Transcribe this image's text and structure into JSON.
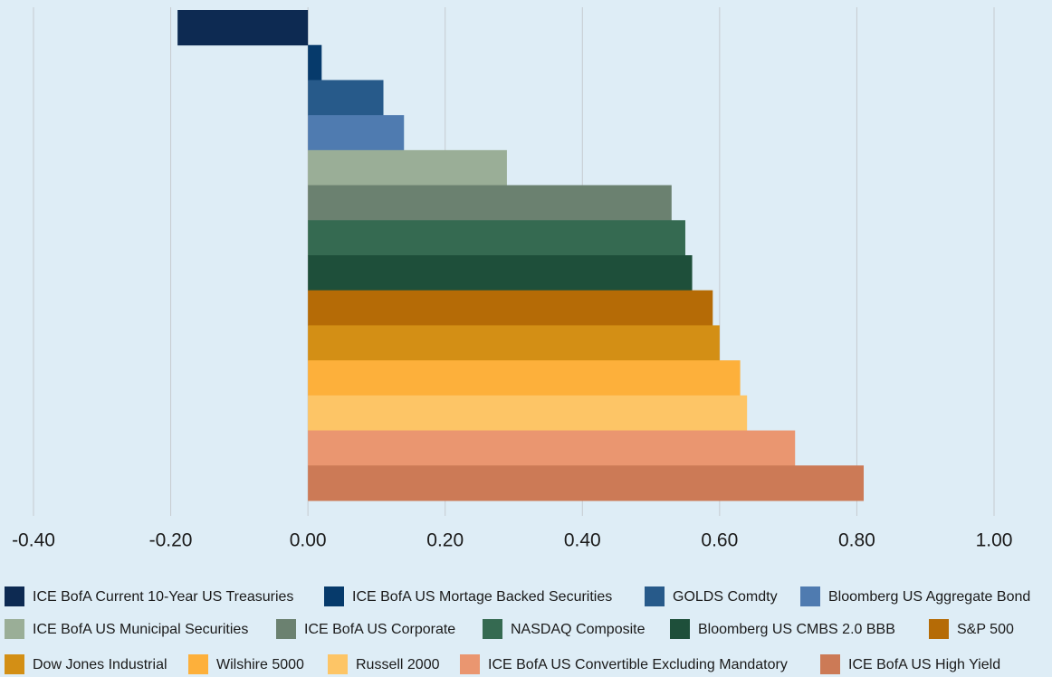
{
  "chart_data": {
    "type": "hbar",
    "series": [
      {
        "name": "ICE BofA Current 10-Year US Treasuries",
        "color": "#0d2a52",
        "values": [
          -0.19
        ]
      },
      {
        "name": "ICE BofA US Mortage Backed Securities",
        "color": "#063a6b",
        "values": [
          0.02
        ]
      },
      {
        "name": "GOLDS Comdty",
        "color": "#275a8a",
        "values": [
          0.11
        ]
      },
      {
        "name": "Bloomberg US Aggregate Bond",
        "color": "#4f7bb0",
        "values": [
          0.14
        ]
      },
      {
        "name": "ICE BofA US Municipal Securities",
        "color": "#9aae97",
        "values": [
          0.29
        ]
      },
      {
        "name": "ICE BofA US Corporate",
        "color": "#6b8170",
        "values": [
          0.53
        ]
      },
      {
        "name": "NASDAQ Composite",
        "color": "#356a51",
        "values": [
          0.55
        ]
      },
      {
        "name": "Bloomberg US CMBS 2.0 BBB",
        "color": "#1e4f3a",
        "values": [
          0.56
        ]
      },
      {
        "name": "S&P 500",
        "color": "#b56b06",
        "values": [
          0.59
        ]
      },
      {
        "name": "Dow Jones Industrial",
        "color": "#d38f15",
        "values": [
          0.6
        ]
      },
      {
        "name": "Wilshire 5000",
        "color": "#fdb03b",
        "values": [
          0.63
        ]
      },
      {
        "name": "Russell 2000",
        "color": "#fdc566",
        "values": [
          0.64
        ]
      },
      {
        "name": "ICE BofA US Convertible Excluding Mandatory",
        "color": "#ea9670",
        "values": [
          0.71
        ]
      },
      {
        "name": "ICE BofA US High Yield",
        "color": "#cc7a56",
        "values": [
          0.81
        ]
      }
    ],
    "xlim": [
      -0.4,
      1.0
    ],
    "xticks": [
      {
        "value": -0.4,
        "label": "-0.40"
      },
      {
        "value": -0.2,
        "label": "-0.20"
      },
      {
        "value": 0,
        "label": "0.00"
      },
      {
        "value": 0.2,
        "label": "0.20"
      },
      {
        "value": 0.4,
        "label": "0.40"
      },
      {
        "value": 0.6,
        "label": "0.60"
      },
      {
        "value": 0.8,
        "label": "0.80"
      },
      {
        "value": 1.0,
        "label": "1.00"
      }
    ],
    "grid": true,
    "legend": "bottom"
  }
}
